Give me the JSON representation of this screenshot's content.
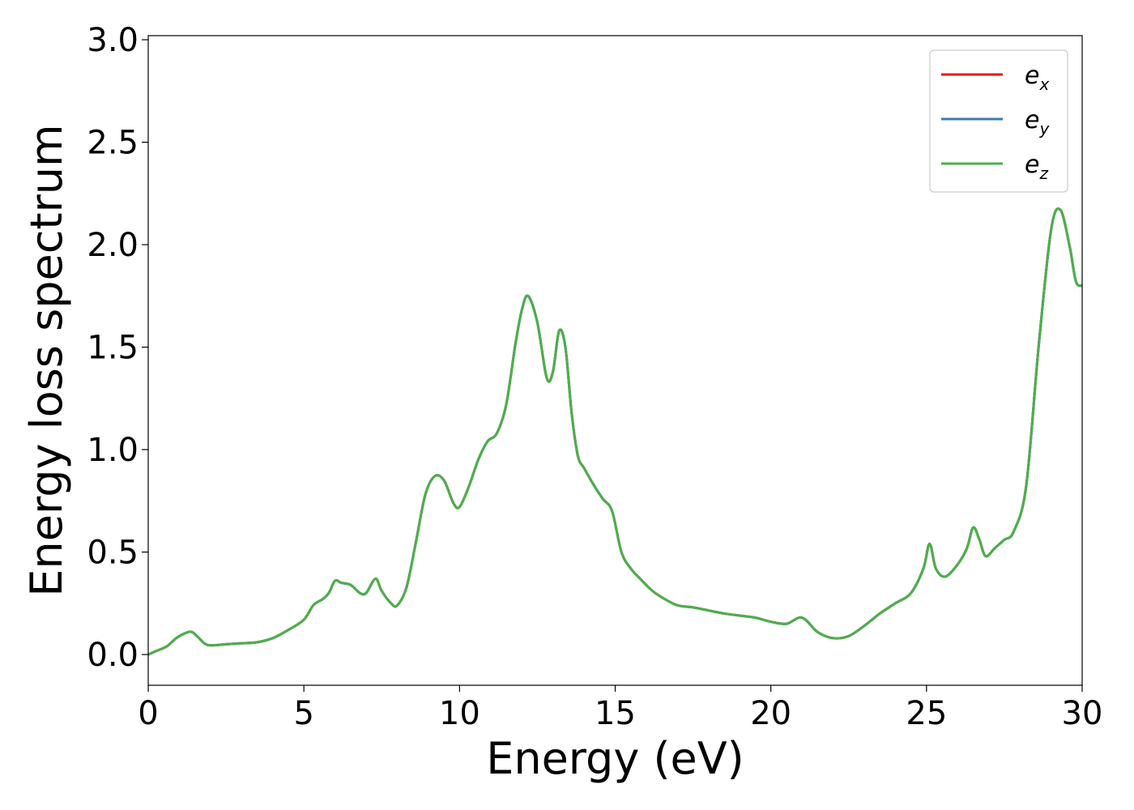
{
  "chart_data": {
    "type": "line",
    "title": "",
    "xlabel": "Energy (eV)",
    "ylabel": "Energy loss spectrum",
    "xlim": [
      0,
      30
    ],
    "ylim": [
      -0.15,
      3.02
    ],
    "xticks": [
      "0",
      "5",
      "10",
      "15",
      "20",
      "25",
      "30"
    ],
    "yticks": [
      "0.0",
      "0.5",
      "1.0",
      "1.5",
      "2.0",
      "2.5",
      "3.0"
    ],
    "grid": false,
    "legend_position": "top-right",
    "series": [
      {
        "name": "e_x",
        "label_base": "e",
        "label_sub": "x",
        "color": "#e41a1c"
      },
      {
        "name": "e_y",
        "label_base": "e",
        "label_sub": "y",
        "color": "#377eb8"
      },
      {
        "name": "e_z",
        "label_base": "e",
        "label_sub": "z",
        "color": "#4daf4a"
      }
    ],
    "x": [
      0,
      0.3,
      0.6,
      0.9,
      1.2,
      1.4,
      1.6,
      1.8,
      2.0,
      2.5,
      3.0,
      3.5,
      4.0,
      4.5,
      5.0,
      5.3,
      5.6,
      5.8,
      6.0,
      6.2,
      6.5,
      6.8,
      7.0,
      7.3,
      7.5,
      7.8,
      8.0,
      8.3,
      8.6,
      8.9,
      9.2,
      9.5,
      9.8,
      10.0,
      10.3,
      10.6,
      10.9,
      11.2,
      11.5,
      11.8,
      12.0,
      12.2,
      12.5,
      12.8,
      13.0,
      13.2,
      13.4,
      13.6,
      13.8,
      14.0,
      14.3,
      14.6,
      14.9,
      15.2,
      15.5,
      15.8,
      16.2,
      16.6,
      17.0,
      17.5,
      18.0,
      18.5,
      19.0,
      19.5,
      20.0,
      20.5,
      21.0,
      21.5,
      22.0,
      22.5,
      23.0,
      23.5,
      24.0,
      24.5,
      24.9,
      25.1,
      25.3,
      25.6,
      26.0,
      26.3,
      26.5,
      26.7,
      26.9,
      27.2,
      27.5,
      27.8,
      28.2,
      28.6,
      29.0,
      29.3,
      29.6,
      29.8,
      30.0
    ],
    "y": [
      0.0,
      0.02,
      0.04,
      0.08,
      0.105,
      0.11,
      0.085,
      0.055,
      0.045,
      0.05,
      0.055,
      0.06,
      0.08,
      0.12,
      0.17,
      0.24,
      0.27,
      0.3,
      0.36,
      0.35,
      0.34,
      0.3,
      0.3,
      0.37,
      0.31,
      0.25,
      0.24,
      0.33,
      0.55,
      0.78,
      0.87,
      0.85,
      0.74,
      0.72,
      0.82,
      0.95,
      1.04,
      1.08,
      1.22,
      1.52,
      1.68,
      1.75,
      1.62,
      1.35,
      1.38,
      1.58,
      1.5,
      1.18,
      0.97,
      0.91,
      0.83,
      0.76,
      0.7,
      0.5,
      0.42,
      0.37,
      0.31,
      0.27,
      0.24,
      0.23,
      0.215,
      0.2,
      0.19,
      0.18,
      0.16,
      0.15,
      0.18,
      0.11,
      0.08,
      0.09,
      0.14,
      0.2,
      0.25,
      0.3,
      0.42,
      0.54,
      0.42,
      0.38,
      0.44,
      0.52,
      0.62,
      0.56,
      0.48,
      0.52,
      0.56,
      0.6,
      0.82,
      1.5,
      2.07,
      2.17,
      1.99,
      1.82,
      1.8
    ]
  }
}
